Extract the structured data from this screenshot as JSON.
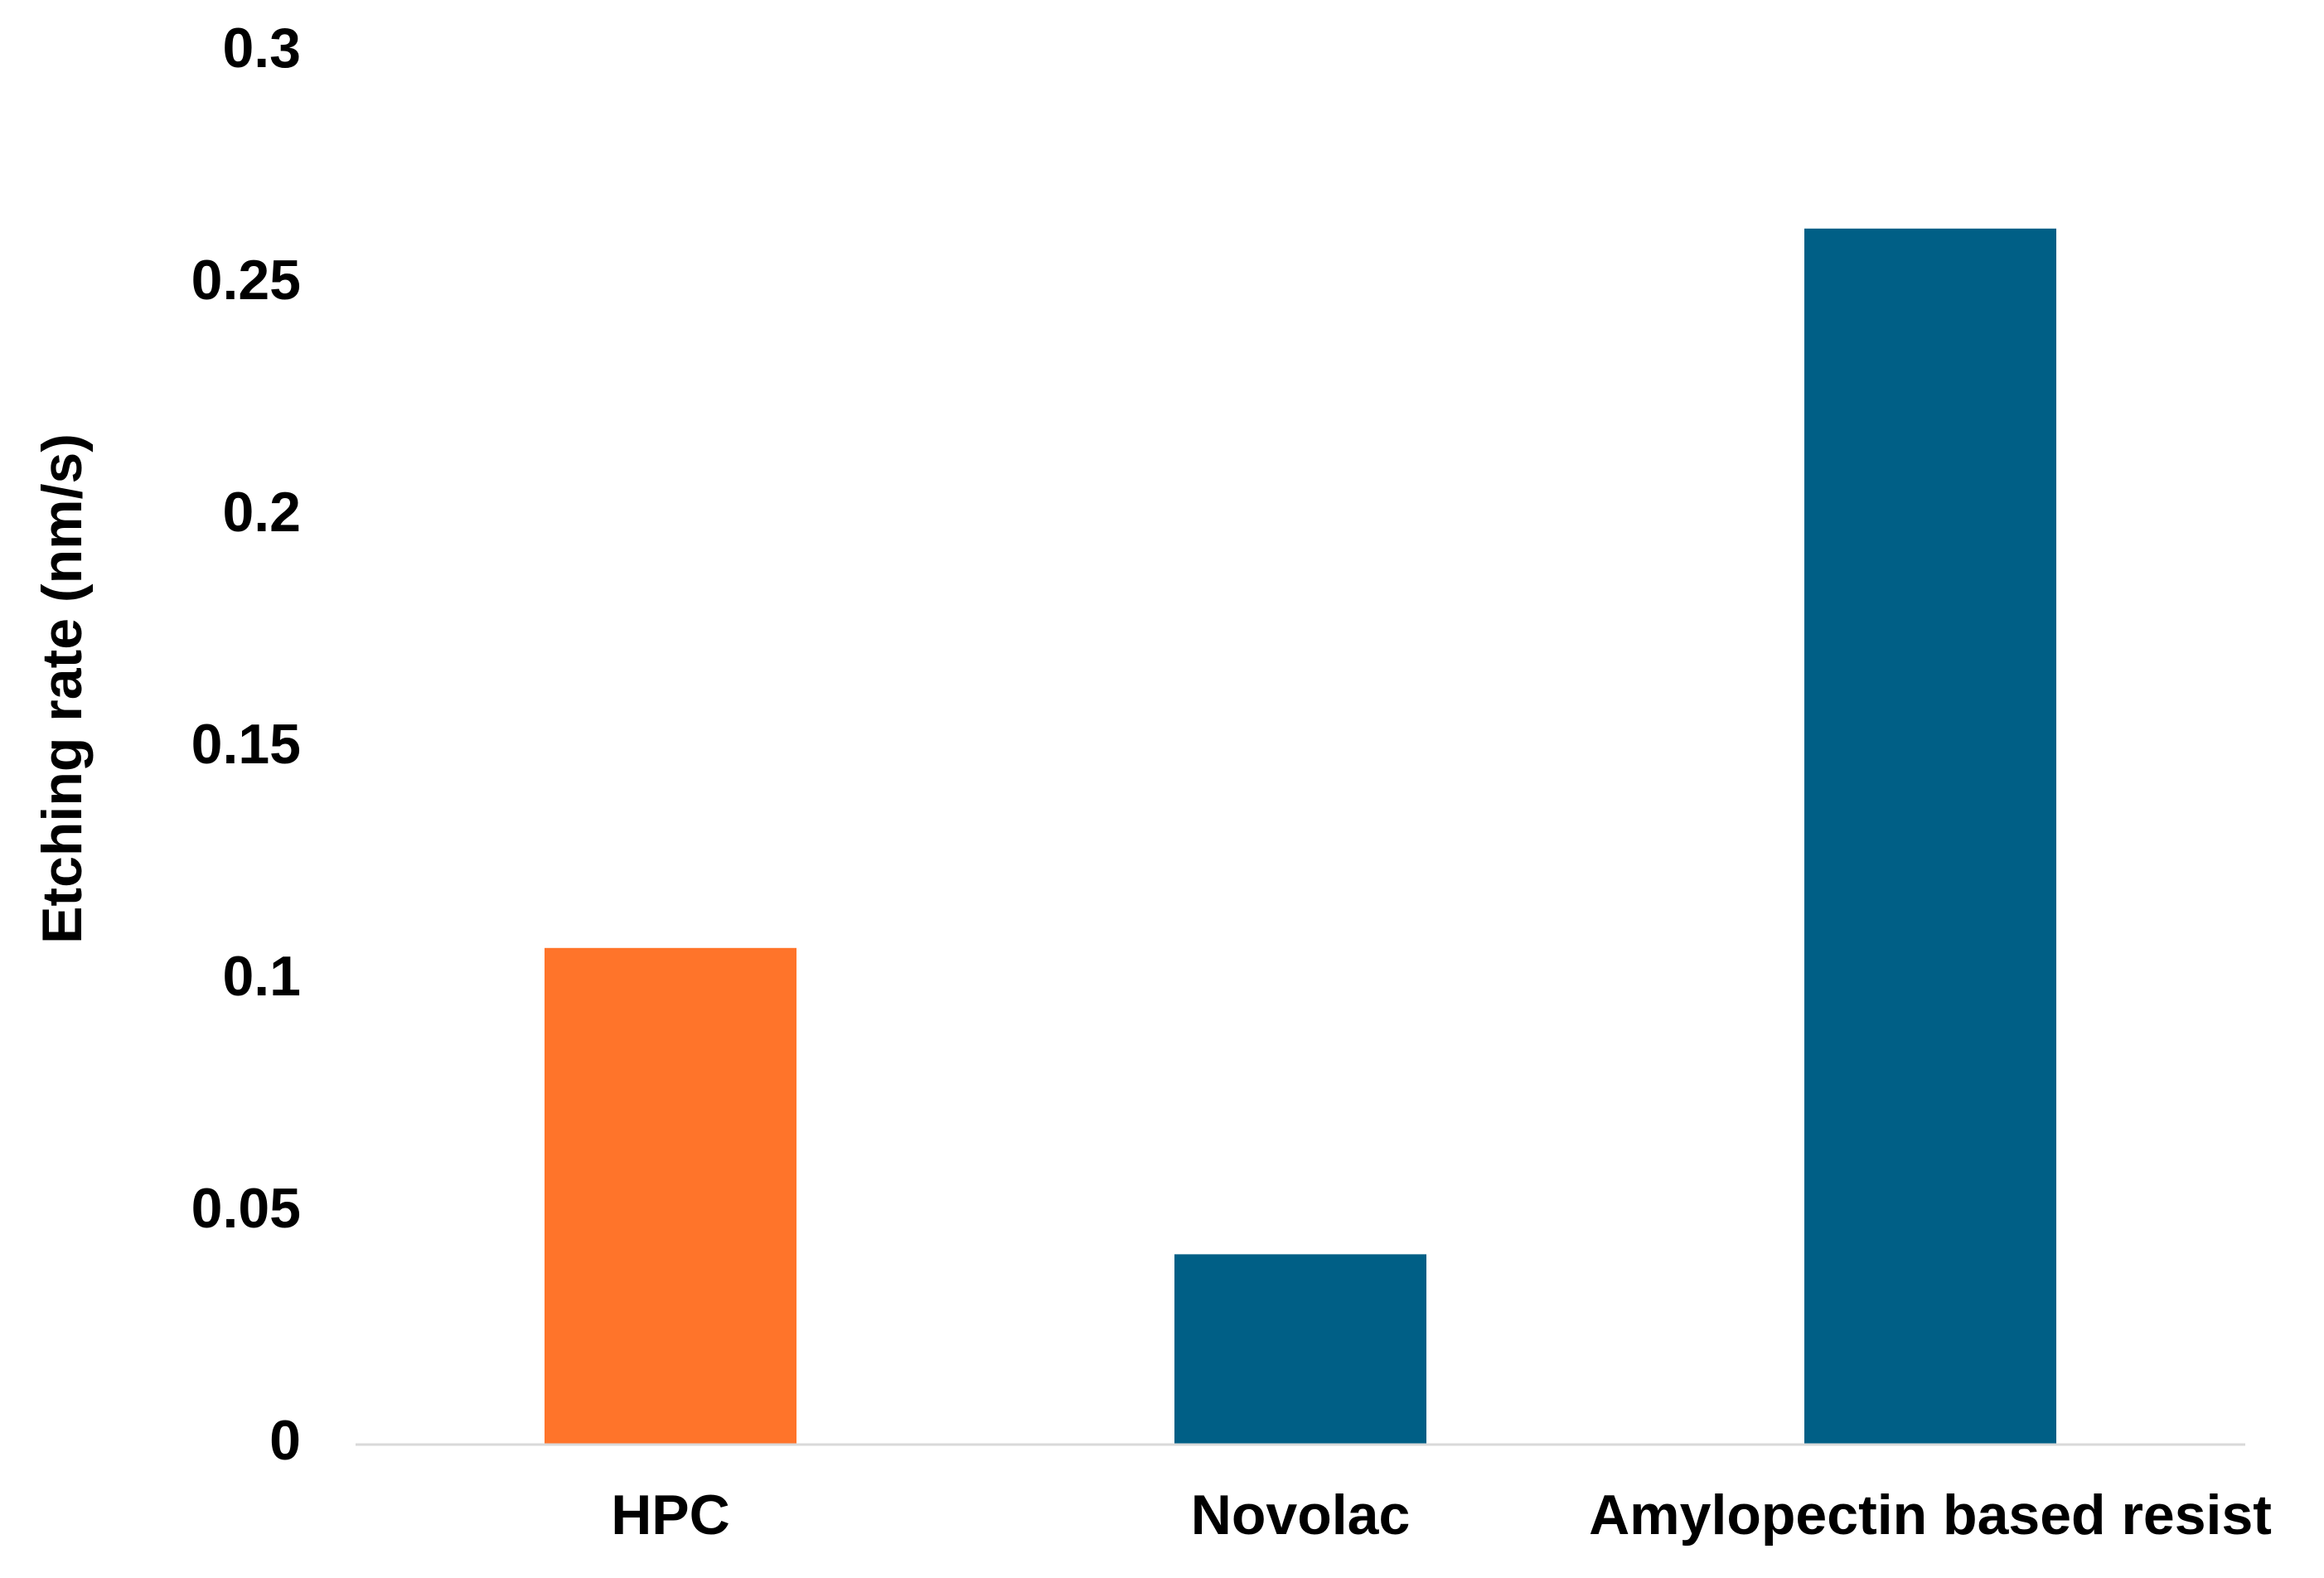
{
  "chart_data": {
    "type": "bar",
    "y_label": "Etching rate (nm/s)",
    "categories": [
      "HPC",
      "Novolac",
      "Amylopectin based resist"
    ],
    "values": [
      0.107,
      0.041,
      0.262
    ],
    "colors": [
      "#ff742a",
      "#005f86",
      "#005f86"
    ],
    "ylim": [
      0,
      0.3
    ],
    "yticks": [
      0,
      0.05,
      0.1,
      0.15,
      0.2,
      0.25,
      0.3
    ],
    "grid": false
  }
}
